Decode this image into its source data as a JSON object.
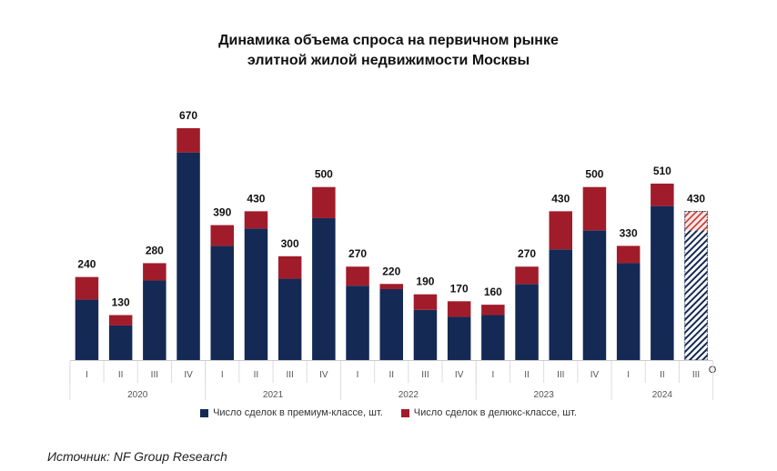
{
  "chart_data": {
    "type": "bar",
    "stacked": true,
    "title": "Динамика объема спроса на первичном рынке элитной жилой недвижимости Москвы",
    "title_lines": [
      "Динамика объема спроса на первичном рынке",
      "элитной жилой недвижимости Москвы"
    ],
    "categories": [
      "I",
      "II",
      "III",
      "IV",
      "I",
      "II",
      "III",
      "IV",
      "I",
      "II",
      "III",
      "IV",
      "I",
      "II",
      "III",
      "IV",
      "I",
      "II",
      "III"
    ],
    "years": [
      {
        "label": "2020",
        "quarters": 4
      },
      {
        "label": "2021",
        "quarters": 4
      },
      {
        "label": "2022",
        "quarters": 4
      },
      {
        "label": "2023",
        "quarters": 4
      },
      {
        "label": "2024",
        "quarters": 3
      }
    ],
    "totals": [
      240,
      130,
      280,
      670,
      390,
      430,
      300,
      500,
      270,
      220,
      190,
      170,
      160,
      270,
      430,
      500,
      330,
      510,
      430
    ],
    "series": [
      {
        "name": "Число сделок в премиум-классе, шт.",
        "color": "#142a55",
        "values": [
          175,
          100,
          230,
          600,
          330,
          380,
          235,
          410,
          215,
          205,
          145,
          125,
          130,
          220,
          320,
          375,
          280,
          445,
          375
        ]
      },
      {
        "name": "Число сделок в делюкс-классе, шт.",
        "color": "#a11c2a",
        "values": [
          65,
          30,
          50,
          70,
          60,
          50,
          65,
          90,
          55,
          15,
          45,
          45,
          30,
          50,
          110,
          125,
          50,
          65,
          55
        ]
      }
    ],
    "forecast_index": 18,
    "forecast_marker": "O",
    "ylim": [
      0,
      700
    ],
    "grid": false,
    "legend_position": "bottom"
  },
  "source": "Источник: NF Group Research"
}
